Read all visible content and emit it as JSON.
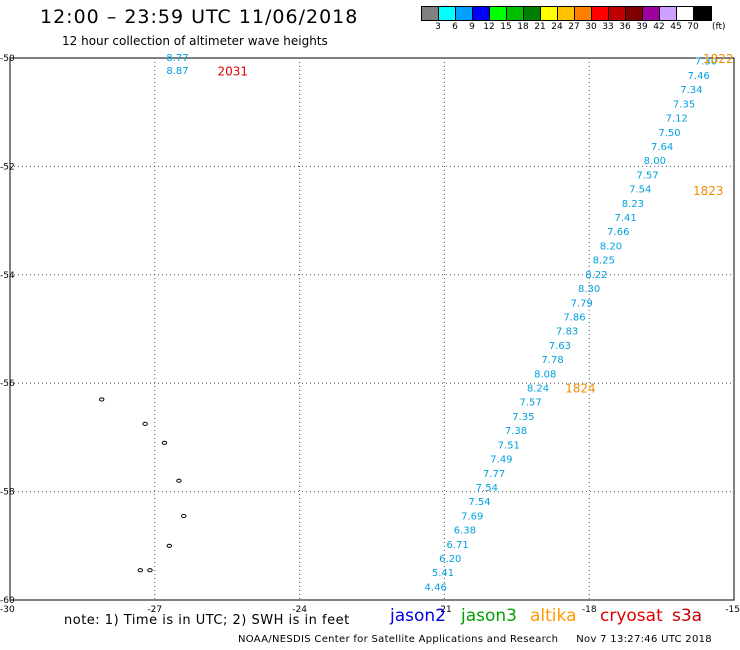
{
  "header": {
    "title": "12:00 – 23:59 UTC 11/06/2018",
    "subtitle": "12 hour collection of altimeter wave heights"
  },
  "color_scale": {
    "unit": "(ft)",
    "bins": [
      {
        "label": "3",
        "color": "#808080"
      },
      {
        "label": "6",
        "color": "#00ffff"
      },
      {
        "label": "9",
        "color": "#00a0ff"
      },
      {
        "label": "12",
        "color": "#0000ff"
      },
      {
        "label": "15",
        "color": "#00ff00"
      },
      {
        "label": "18",
        "color": "#00c000"
      },
      {
        "label": "21",
        "color": "#008000"
      },
      {
        "label": "24",
        "color": "#ffff00"
      },
      {
        "label": "27",
        "color": "#ffc000"
      },
      {
        "label": "30",
        "color": "#ff8000"
      },
      {
        "label": "33",
        "color": "#ff0000"
      },
      {
        "label": "36",
        "color": "#c00000"
      },
      {
        "label": "39",
        "color": "#800000"
      },
      {
        "label": "42",
        "color": "#a000a0"
      },
      {
        "label": "45",
        "color": "#d0a0ff"
      },
      {
        "label": "70",
        "color": "#ffffff"
      },
      {
        "label": "",
        "color": "#000000"
      }
    ]
  },
  "map": {
    "lon_ticks": [
      "-30",
      "-27",
      "-24",
      "-21",
      "-18",
      "-15"
    ],
    "lat_ticks": [
      "-50",
      "-52",
      "-54",
      "-56",
      "-58",
      "-60"
    ],
    "lon_range": [
      -30,
      -15
    ],
    "lat_range": [
      -60,
      -50
    ],
    "value_color": "#00a0e0",
    "time_labels": [
      {
        "text": "2031",
        "color": "#e00000"
      },
      {
        "text": "1822",
        "color": "#f08c00"
      },
      {
        "text": "1823",
        "color": "#f08c00"
      },
      {
        "text": "1824",
        "color": "#f08c00"
      }
    ],
    "track_values": [
      "7.30",
      "7.46",
      "7.34",
      "7.35",
      "7.12",
      "7.50",
      "7.64",
      "8.00",
      "7.57",
      "7.54",
      "8.23",
      "7.41",
      "7.66",
      "8.20",
      "8.25",
      "8.22",
      "8.30",
      "7.79",
      "7.86",
      "7.83",
      "7.63",
      "7.78",
      "8.08",
      "8.24",
      "7.57",
      "7.35",
      "7.38",
      "7.51",
      "7.49",
      "7.77",
      "7.54",
      "7.54",
      "7.69",
      "6.38",
      "6.71",
      "6.20",
      "5.41",
      "4.46"
    ],
    "north_values": [
      "8.77",
      "8.87"
    ]
  },
  "footer": {
    "note": "note:  1) Time is in UTC;  2) SWH is in feet",
    "satellites": [
      {
        "name": "jason2",
        "color": "#0000e0"
      },
      {
        "name": "jason3",
        "color": "#00a000"
      },
      {
        "name": "altika",
        "color": "#ff9900"
      },
      {
        "name": "cryosat",
        "color": "#e00000"
      },
      {
        "name": "s3a",
        "color": "#c00000"
      }
    ],
    "credit": "NOAA/NESDIS Center for Satellite Applications and Research",
    "generated": "Nov  7 13:27:46 UTC 2018"
  }
}
